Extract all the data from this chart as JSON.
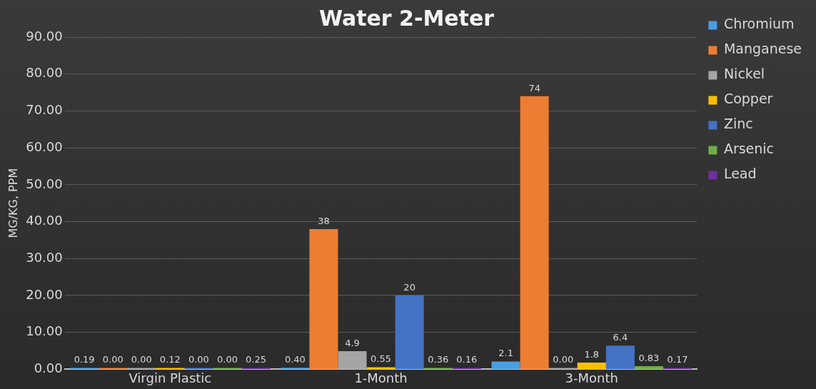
{
  "chart_data": {
    "type": "bar",
    "title": "Water 2-Meter",
    "ylabel": "MG/KG, PPM",
    "categories": [
      "Virgin Plastic",
      "1-Month",
      "3-Month"
    ],
    "series": [
      {
        "name": "Chromium",
        "color": "#4a9fe0",
        "values": [
          0.19,
          0.4,
          2.1
        ],
        "value_labels": [
          "0.19",
          "0.40",
          "2.1"
        ]
      },
      {
        "name": "Manganese",
        "color": "#ed7d31",
        "values": [
          0,
          38,
          74
        ],
        "value_labels": [
          "0.00",
          "38",
          "74"
        ]
      },
      {
        "name": "Nickel",
        "color": "#a5a5a5",
        "values": [
          0,
          4.9,
          0
        ],
        "value_labels": [
          "0.00",
          "4.9",
          "0.00"
        ]
      },
      {
        "name": "Copper",
        "color": "#ffc000",
        "values": [
          0.12,
          0.55,
          1.8
        ],
        "value_labels": [
          "0.12",
          "0.55",
          "1.8"
        ]
      },
      {
        "name": "Zinc",
        "color": "#4472c4",
        "values": [
          0,
          20,
          6.4
        ],
        "value_labels": [
          "0.00",
          "20",
          "6.4"
        ]
      },
      {
        "name": "Arsenic",
        "color": "#70ad47",
        "values": [
          0,
          0.36,
          0.83
        ],
        "value_labels": [
          "0.00",
          "0.36",
          "0.83"
        ]
      },
      {
        "name": "Lead",
        "color": "#7030a0",
        "values": [
          0.25,
          0.16,
          0.17
        ],
        "value_labels": [
          "0.25",
          "0.16",
          "0.17"
        ]
      }
    ],
    "ylim": [
      0,
      90
    ],
    "yticks": [
      {
        "value": 0,
        "label": "0.00"
      },
      {
        "value": 10,
        "label": "10.00"
      },
      {
        "value": 20,
        "label": "20.00"
      },
      {
        "value": 30,
        "label": "30.00"
      },
      {
        "value": 40,
        "label": "40.00"
      },
      {
        "value": 50,
        "label": "50.00"
      },
      {
        "value": 60,
        "label": "60.00"
      },
      {
        "value": 70,
        "label": "70.00"
      },
      {
        "value": 80,
        "label": "80.00"
      },
      {
        "value": 90,
        "label": "90.00"
      }
    ],
    "grid": "y",
    "legend": "right"
  }
}
